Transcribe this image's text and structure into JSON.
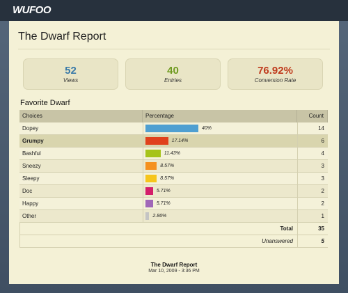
{
  "logo": "WUFOO",
  "title": "The Dwarf Report",
  "stats": [
    {
      "value": "52",
      "label": "Views",
      "color": "#3a7aa8"
    },
    {
      "value": "40",
      "label": "Entries",
      "color": "#6e9a1f"
    },
    {
      "value": "76.92%",
      "label": "Conversion Rate",
      "color": "#bf3a1c"
    }
  ],
  "section_title": "Favorite Dwarf",
  "table": {
    "columns": [
      "Choices",
      "Percentage",
      "Count"
    ],
    "rows": [
      {
        "choice": "Dopey",
        "percent": 40,
        "percent_label": "40%",
        "count": 14,
        "color": "#4f9fd1"
      },
      {
        "choice": "Grumpy",
        "percent": 17.14,
        "percent_label": "17.14%",
        "count": 6,
        "color": "#e0411c"
      },
      {
        "choice": "Bashful",
        "percent": 11.43,
        "percent_label": "11.43%",
        "count": 4,
        "color": "#a6c31a"
      },
      {
        "choice": "Sneezy",
        "percent": 8.57,
        "percent_label": "8.57%",
        "count": 3,
        "color": "#f5911f"
      },
      {
        "choice": "Sleepy",
        "percent": 8.57,
        "percent_label": "8.57%",
        "count": 3,
        "color": "#f6c51b"
      },
      {
        "choice": "Doc",
        "percent": 5.71,
        "percent_label": "5.71%",
        "count": 2,
        "color": "#d41e6a"
      },
      {
        "choice": "Happy",
        "percent": 5.71,
        "percent_label": "5.71%",
        "count": 2,
        "color": "#a067b8"
      },
      {
        "choice": "Other",
        "percent": 2.86,
        "percent_label": "2.86%",
        "count": 1,
        "color": "#c4c4c4"
      }
    ],
    "total_label": "Total",
    "total": 35,
    "unanswered_label": "Unanswered",
    "unanswered": 5
  },
  "footer": {
    "title": "The Dwarf Report",
    "date": "Mar 10, 2009 - 3:36 PM"
  }
}
